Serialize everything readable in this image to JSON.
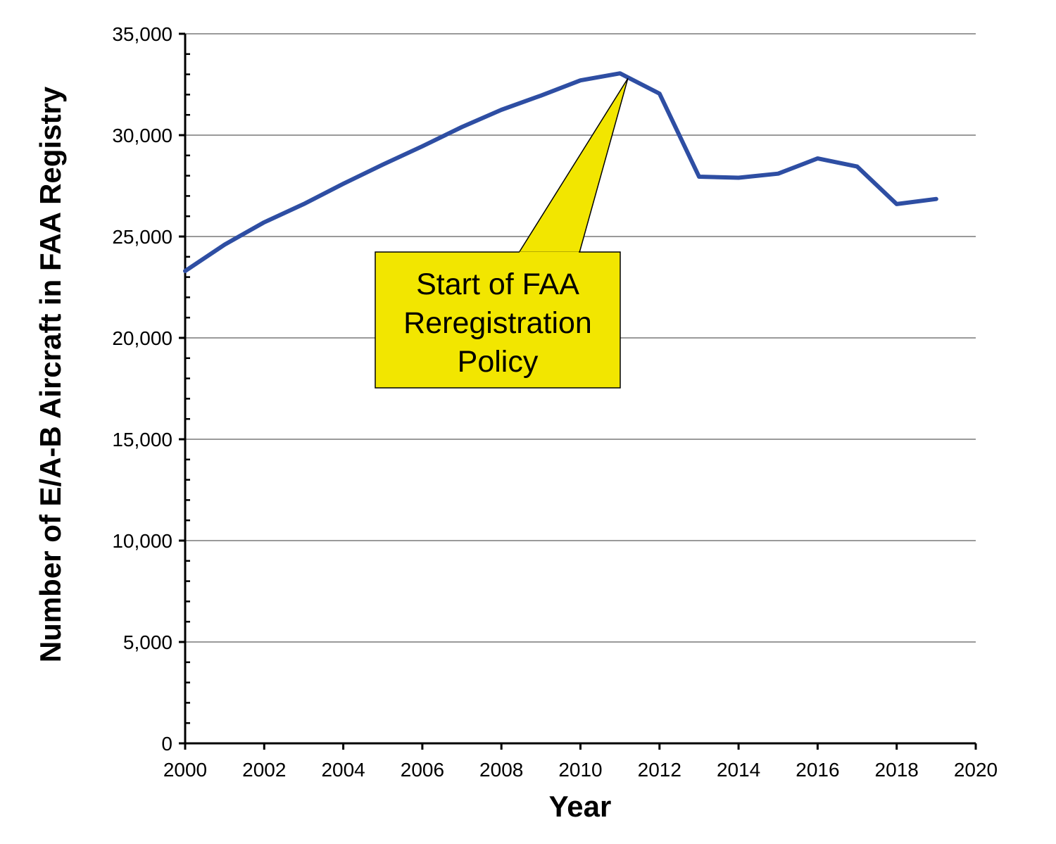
{
  "chart_data": {
    "type": "line",
    "title": "",
    "xlabel": "Year",
    "ylabel": "Number of E/A-B Aircraft in FAA Registry",
    "xlim": [
      2000,
      2020
    ],
    "ylim": [
      0,
      35000
    ],
    "grid": "horizontal",
    "x_ticks": [
      2000,
      2002,
      2004,
      2006,
      2008,
      2010,
      2012,
      2014,
      2016,
      2018,
      2020
    ],
    "x_tick_labels": [
      "2000",
      "2002",
      "2004",
      "2006",
      "2008",
      "2010",
      "2012",
      "2014",
      "2016",
      "2018",
      "2020"
    ],
    "y_ticks": [
      0,
      5000,
      10000,
      15000,
      20000,
      25000,
      30000,
      35000
    ],
    "y_tick_labels": [
      "0",
      "5,000",
      "10,000",
      "15,000",
      "20,000",
      "25,000",
      "30,000",
      "35,000"
    ],
    "series": [
      {
        "color": "#2e4ea3",
        "x": [
          2000,
          2001,
          2002,
          2003,
          2004,
          2005,
          2006,
          2007,
          2008,
          2009,
          2010,
          2011,
          2012,
          2013,
          2014,
          2015,
          2016,
          2017,
          2018,
          2019
        ],
        "values": [
          23300,
          24600,
          25700,
          26600,
          27600,
          28550,
          29450,
          30400,
          31250,
          31950,
          32700,
          33050,
          32050,
          27950,
          27900,
          28100,
          28850,
          28450,
          26600,
          26850
        ]
      }
    ],
    "annotations": [
      {
        "lines": [
          "Start of FAA",
          "Reregistration",
          "Policy"
        ],
        "points_to": {
          "x": 2011.2,
          "y": 32800
        },
        "fill": "#f2e600"
      }
    ]
  }
}
